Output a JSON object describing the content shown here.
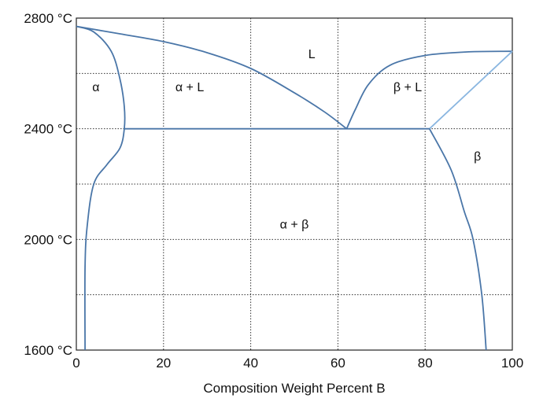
{
  "chart_data": {
    "type": "line",
    "title": "",
    "xlabel": "Composition Weight Percent B",
    "ylabel": "",
    "xlim": [
      0,
      100
    ],
    "ylim": [
      1600,
      2800
    ],
    "grid": true,
    "x_ticks": [
      {
        "value": 0,
        "label": "0"
      },
      {
        "value": 20,
        "label": "20"
      },
      {
        "value": 40,
        "label": "40"
      },
      {
        "value": 60,
        "label": "60"
      },
      {
        "value": 80,
        "label": "80"
      },
      {
        "value": 100,
        "label": "100"
      }
    ],
    "y_ticks": [
      {
        "value": 1600,
        "label": "1600 °C"
      },
      {
        "value": 2000,
        "label": "2000 °C"
      },
      {
        "value": 2400,
        "label": "2400 °C"
      },
      {
        "value": 2800,
        "label": "2800 °C"
      }
    ],
    "x_grid": [
      0,
      20,
      40,
      60,
      80,
      100
    ],
    "y_grid": [
      1600,
      1800,
      2000,
      2200,
      2400,
      2600,
      2800
    ],
    "series": [
      {
        "id": "liquidus-alpha",
        "color": "#4a76a8",
        "points": [
          [
            0,
            2770
          ],
          [
            10,
            2743
          ],
          [
            20,
            2715
          ],
          [
            30,
            2675
          ],
          [
            40,
            2618
          ],
          [
            50,
            2530
          ],
          [
            57,
            2460
          ],
          [
            62,
            2400
          ]
        ]
      },
      {
        "id": "liquidus-beta",
        "color": "#4a76a8",
        "points": [
          [
            62,
            2400
          ],
          [
            64,
            2470
          ],
          [
            67,
            2560
          ],
          [
            72,
            2630
          ],
          [
            80,
            2665
          ],
          [
            90,
            2678
          ],
          [
            100,
            2680
          ]
        ]
      },
      {
        "id": "solidus-beta",
        "color": "#8ab6e0",
        "points": [
          [
            81,
            2400
          ],
          [
            100,
            2680
          ]
        ]
      },
      {
        "id": "solidus-alpha",
        "color": "#4a76a8",
        "points": [
          [
            0,
            2770
          ],
          [
            4,
            2750
          ],
          [
            8,
            2680
          ],
          [
            10,
            2580
          ],
          [
            11,
            2480
          ],
          [
            11,
            2400
          ],
          [
            10,
            2330
          ],
          [
            7,
            2270
          ],
          [
            4,
            2200
          ],
          [
            2.5,
            2050
          ],
          [
            2,
            1900
          ],
          [
            2,
            1600
          ]
        ]
      },
      {
        "id": "eutectic-isotherm",
        "color": "#4a76a8",
        "points": [
          [
            11,
            2400
          ],
          [
            81,
            2400
          ]
        ]
      },
      {
        "id": "solvus-beta",
        "color": "#4a76a8",
        "points": [
          [
            81,
            2400
          ],
          [
            86,
            2250
          ],
          [
            89,
            2100
          ],
          [
            91,
            2000
          ],
          [
            93,
            1800
          ],
          [
            94,
            1600
          ]
        ]
      }
    ],
    "regions": [
      {
        "label": "L",
        "x": 54,
        "y": 2655
      },
      {
        "label": "α",
        "x": 4.5,
        "y": 2535
      },
      {
        "label": "α + L",
        "x": 26,
        "y": 2535
      },
      {
        "label": "β + L",
        "x": 76,
        "y": 2535
      },
      {
        "label": "β",
        "x": 92,
        "y": 2285
      },
      {
        "label": "α + β",
        "x": 50,
        "y": 2040
      }
    ]
  }
}
